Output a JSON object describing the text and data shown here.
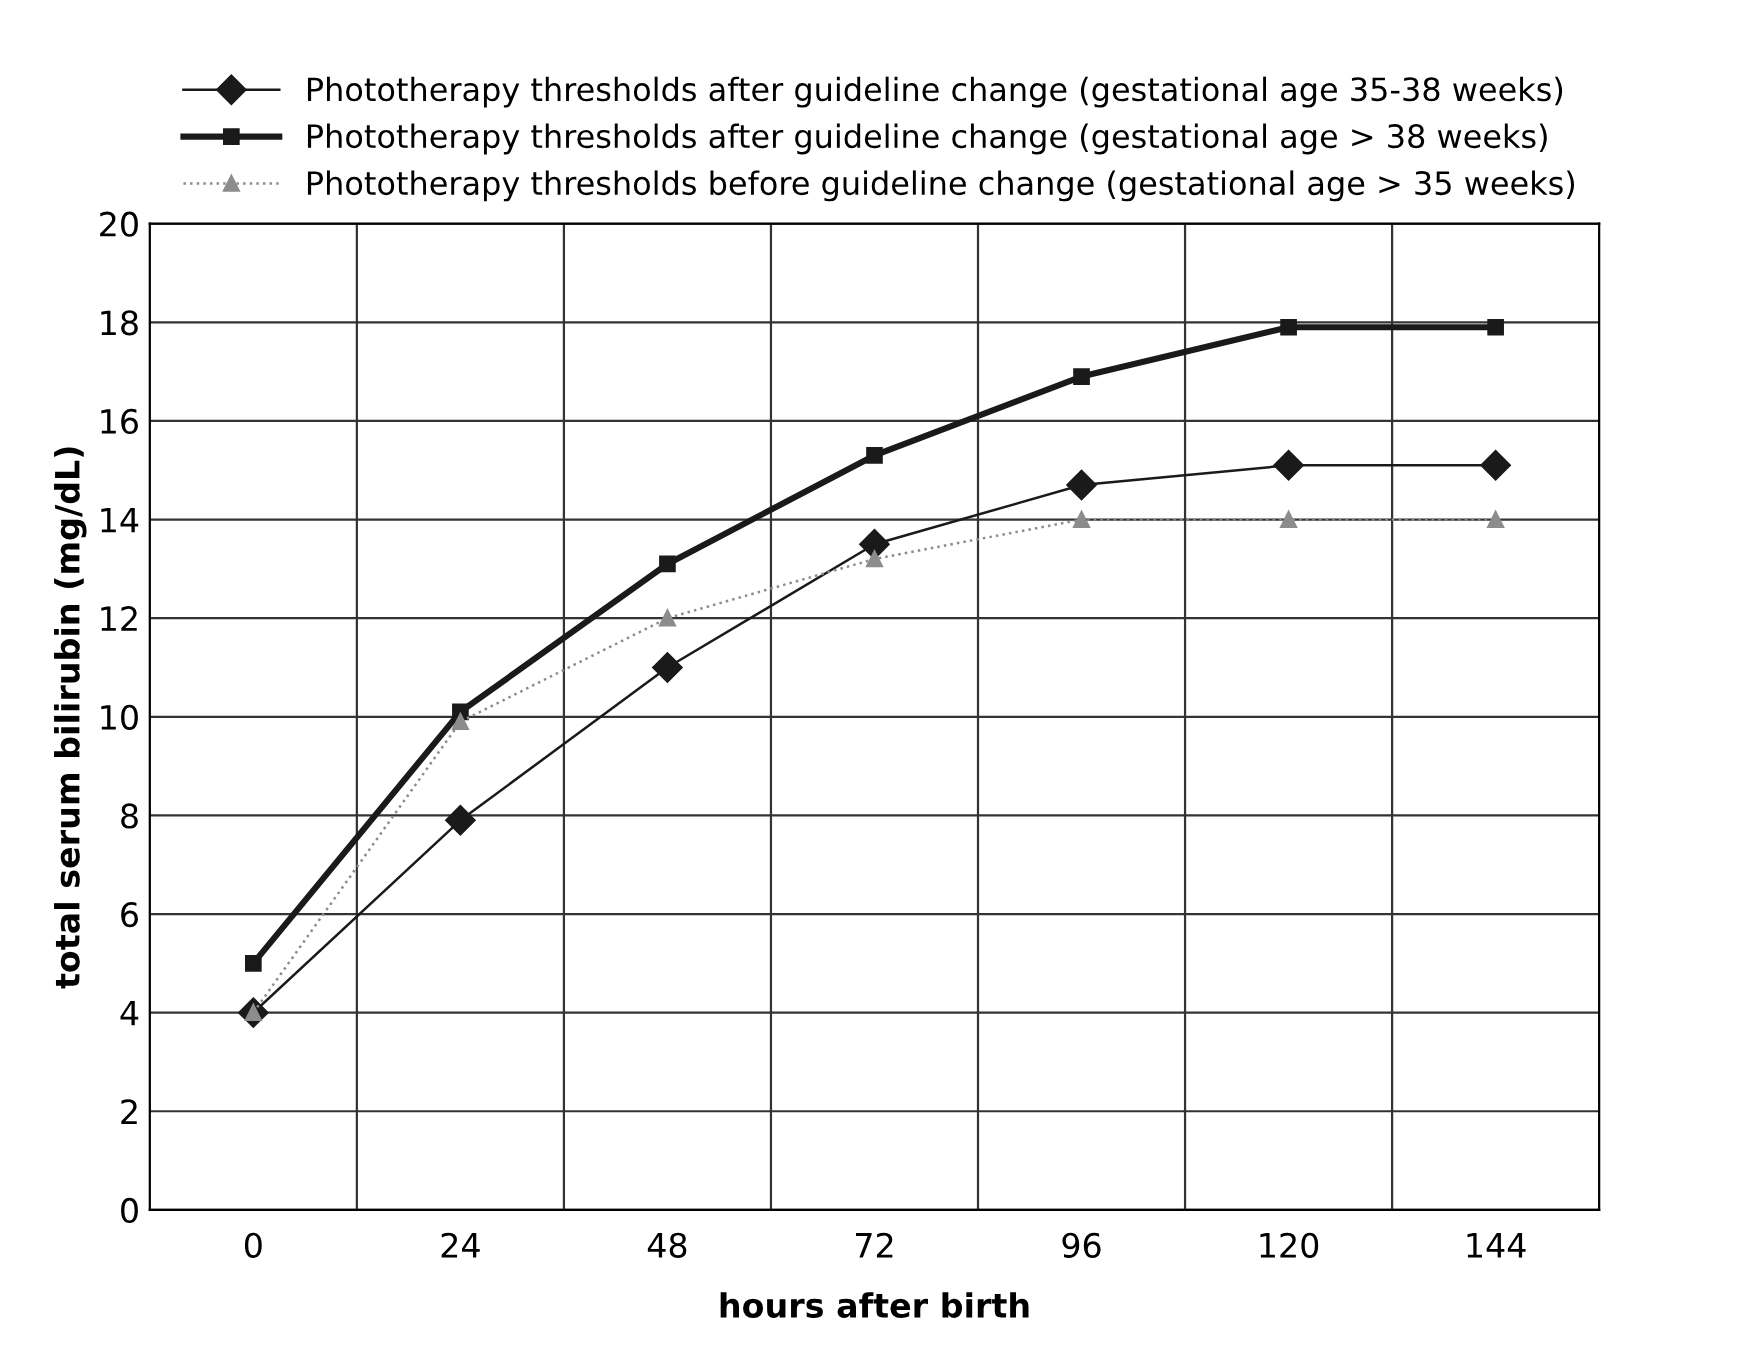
{
  "chart_data": {
    "type": "line",
    "xlabel": "hours after birth",
    "ylabel": "total serum bilirubin (mg/dL)",
    "categories": [
      "0",
      "24",
      "48",
      "72",
      "96",
      "120",
      "144"
    ],
    "series": [
      {
        "name": "Phototherapy thresholds after guideline change (gestational age 35-38 weeks)",
        "color": "#1a1a1a",
        "marker": "diamond",
        "line_style": "solid",
        "values": [
          4,
          7.9,
          11,
          13.5,
          14.7,
          15.1,
          15.1
        ]
      },
      {
        "name": "Phototherapy thresholds after guideline change (gestational age > 38 weeks)",
        "color": "#1a1a1a",
        "marker": "square",
        "line_style": "solid",
        "values": [
          5,
          10.1,
          13.1,
          15.3,
          16.9,
          17.9,
          17.9
        ]
      },
      {
        "name": "Phototherapy thresholds before guideline change (gestational age > 35 weeks)",
        "color": "#8c8c8c",
        "marker": "triangle",
        "line_style": "dotted",
        "values": [
          4,
          9.9,
          12,
          13.2,
          14,
          14,
          14
        ]
      }
    ],
    "ylim": [
      0,
      20
    ],
    "yticks": [
      0,
      2,
      4,
      6,
      8,
      10,
      12,
      14,
      16,
      18,
      20
    ],
    "grid": true,
    "legend": "top"
  }
}
